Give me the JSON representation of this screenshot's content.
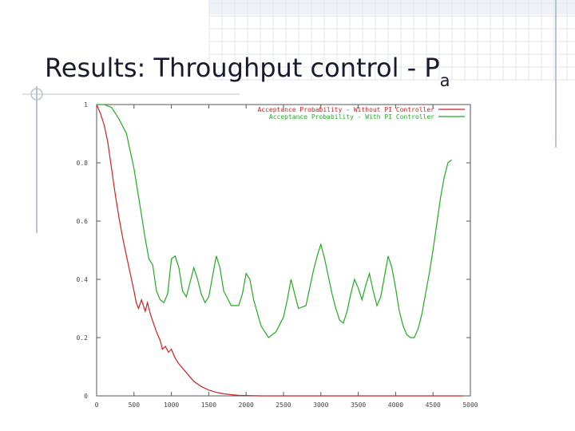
{
  "slide": {
    "title_main": "Results: Throughput control - P",
    "title_sub": "a"
  },
  "colors": {
    "title": "#1a1a2e",
    "grid_decoration": "#dfe6ef",
    "frame_accent": "#b9c4d2",
    "series_without": "#cc2222",
    "series_with": "#22aa22"
  },
  "chart_data": {
    "type": "line",
    "title": "",
    "xlabel": "",
    "ylabel": "",
    "xlim": [
      0,
      5000
    ],
    "ylim": [
      0,
      1
    ],
    "grid": false,
    "legend_position": "top-right",
    "x_ticks": [
      {
        "value": 0,
        "label": "0"
      },
      {
        "value": 500,
        "label": "500"
      },
      {
        "value": 1000,
        "label": "1000"
      },
      {
        "value": 1500,
        "label": "1500"
      },
      {
        "value": 2000,
        "label": "2000"
      },
      {
        "value": 2500,
        "label": "2500"
      },
      {
        "value": 3000,
        "label": "3000"
      },
      {
        "value": 3500,
        "label": "3500"
      },
      {
        "value": 4000,
        "label": "4000"
      },
      {
        "value": 4500,
        "label": "4500"
      },
      {
        "value": 5000,
        "label": "5000"
      }
    ],
    "y_ticks": [
      {
        "value": 0,
        "label": "0"
      },
      {
        "value": 0.2,
        "label": "0.2"
      },
      {
        "value": 0.4,
        "label": "0.4"
      },
      {
        "value": 0.6,
        "label": "0.6"
      },
      {
        "value": 0.8,
        "label": "0.8"
      },
      {
        "value": 1,
        "label": "1"
      }
    ],
    "series": [
      {
        "name": "Acceptance Probability - Without PI Controller",
        "color": "#cc2222",
        "points": [
          [
            0,
            1.0
          ],
          [
            50,
            0.97
          ],
          [
            100,
            0.93
          ],
          [
            150,
            0.87
          ],
          [
            200,
            0.78
          ],
          [
            250,
            0.69
          ],
          [
            300,
            0.61
          ],
          [
            350,
            0.54
          ],
          [
            400,
            0.48
          ],
          [
            450,
            0.42
          ],
          [
            500,
            0.36
          ],
          [
            530,
            0.32
          ],
          [
            560,
            0.3
          ],
          [
            600,
            0.33
          ],
          [
            650,
            0.29
          ],
          [
            680,
            0.32
          ],
          [
            720,
            0.28
          ],
          [
            760,
            0.25
          ],
          [
            800,
            0.22
          ],
          [
            850,
            0.19
          ],
          [
            880,
            0.16
          ],
          [
            920,
            0.17
          ],
          [
            960,
            0.15
          ],
          [
            1000,
            0.16
          ],
          [
            1050,
            0.13
          ],
          [
            1100,
            0.11
          ],
          [
            1150,
            0.095
          ],
          [
            1200,
            0.08
          ],
          [
            1250,
            0.065
          ],
          [
            1300,
            0.05
          ],
          [
            1400,
            0.032
          ],
          [
            1500,
            0.02
          ],
          [
            1600,
            0.012
          ],
          [
            1700,
            0.007
          ],
          [
            1800,
            0.004
          ],
          [
            1900,
            0.002
          ],
          [
            2000,
            0.001
          ],
          [
            2200,
            0.0
          ],
          [
            2500,
            0.0
          ],
          [
            3000,
            0.0
          ],
          [
            3500,
            0.0
          ],
          [
            4000,
            0.0
          ],
          [
            4500,
            0.0
          ],
          [
            4900,
            0.0
          ]
        ]
      },
      {
        "name": "Acceptance Probability - With PI Controller",
        "color": "#22aa22",
        "points": [
          [
            0,
            1.0
          ],
          [
            100,
            1.0
          ],
          [
            200,
            0.99
          ],
          [
            300,
            0.95
          ],
          [
            400,
            0.9
          ],
          [
            450,
            0.84
          ],
          [
            500,
            0.78
          ],
          [
            550,
            0.7
          ],
          [
            600,
            0.62
          ],
          [
            650,
            0.54
          ],
          [
            700,
            0.47
          ],
          [
            750,
            0.45
          ],
          [
            800,
            0.36
          ],
          [
            850,
            0.33
          ],
          [
            900,
            0.32
          ],
          [
            950,
            0.35
          ],
          [
            1000,
            0.47
          ],
          [
            1050,
            0.48
          ],
          [
            1100,
            0.44
          ],
          [
            1150,
            0.36
          ],
          [
            1200,
            0.34
          ],
          [
            1250,
            0.39
          ],
          [
            1300,
            0.44
          ],
          [
            1350,
            0.4
          ],
          [
            1400,
            0.35
          ],
          [
            1450,
            0.32
          ],
          [
            1500,
            0.34
          ],
          [
            1550,
            0.41
          ],
          [
            1600,
            0.48
          ],
          [
            1650,
            0.44
          ],
          [
            1700,
            0.36
          ],
          [
            1800,
            0.31
          ],
          [
            1900,
            0.31
          ],
          [
            1950,
            0.35
          ],
          [
            2000,
            0.42
          ],
          [
            2050,
            0.4
          ],
          [
            2100,
            0.33
          ],
          [
            2200,
            0.24
          ],
          [
            2300,
            0.2
          ],
          [
            2400,
            0.22
          ],
          [
            2500,
            0.27
          ],
          [
            2550,
            0.33
          ],
          [
            2600,
            0.4
          ],
          [
            2650,
            0.35
          ],
          [
            2700,
            0.3
          ],
          [
            2800,
            0.31
          ],
          [
            2850,
            0.37
          ],
          [
            2900,
            0.43
          ],
          [
            2950,
            0.48
          ],
          [
            3000,
            0.52
          ],
          [
            3050,
            0.47
          ],
          [
            3100,
            0.41
          ],
          [
            3150,
            0.35
          ],
          [
            3200,
            0.3
          ],
          [
            3250,
            0.26
          ],
          [
            3300,
            0.25
          ],
          [
            3350,
            0.29
          ],
          [
            3400,
            0.35
          ],
          [
            3450,
            0.4
          ],
          [
            3500,
            0.37
          ],
          [
            3550,
            0.33
          ],
          [
            3600,
            0.38
          ],
          [
            3650,
            0.42
          ],
          [
            3700,
            0.36
          ],
          [
            3750,
            0.31
          ],
          [
            3800,
            0.34
          ],
          [
            3850,
            0.41
          ],
          [
            3900,
            0.48
          ],
          [
            3950,
            0.44
          ],
          [
            4000,
            0.37
          ],
          [
            4050,
            0.29
          ],
          [
            4100,
            0.24
          ],
          [
            4150,
            0.21
          ],
          [
            4200,
            0.2
          ],
          [
            4250,
            0.2
          ],
          [
            4300,
            0.23
          ],
          [
            4350,
            0.28
          ],
          [
            4400,
            0.35
          ],
          [
            4450,
            0.42
          ],
          [
            4500,
            0.5
          ],
          [
            4550,
            0.59
          ],
          [
            4600,
            0.68
          ],
          [
            4650,
            0.75
          ],
          [
            4700,
            0.8
          ],
          [
            4750,
            0.81
          ]
        ]
      }
    ]
  }
}
